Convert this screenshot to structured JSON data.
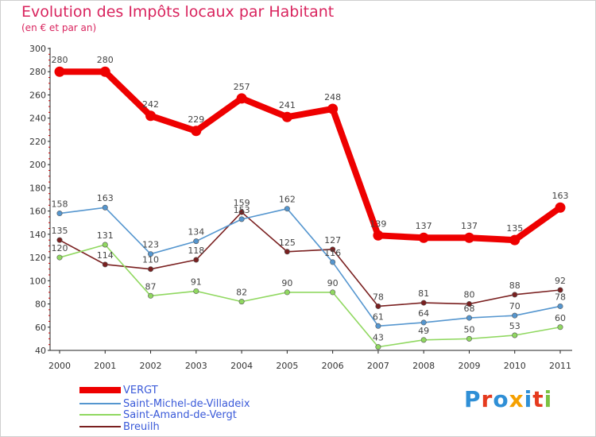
{
  "chart_data": {
    "type": "line",
    "title": "Evolution des Impôts locaux par Habitant",
    "subtitle": "(en € et par an)",
    "xlabel": "",
    "ylabel": "",
    "ylim": [
      40,
      300
    ],
    "yticks": [
      40,
      60,
      80,
      100,
      120,
      140,
      160,
      180,
      200,
      220,
      240,
      260,
      280,
      300
    ],
    "categories": [
      "2000",
      "2001",
      "2002",
      "2003",
      "2004",
      "2005",
      "2006",
      "2007",
      "2008",
      "2009",
      "2010",
      "2011"
    ],
    "series": [
      {
        "name": "VERGT",
        "color": "#ee0000",
        "values": [
          280,
          280,
          242,
          229,
          257,
          241,
          248,
          139,
          137,
          137,
          135,
          163
        ]
      },
      {
        "name": "Saint-Michel-de-Villadeix",
        "color": "#5596cf",
        "values": [
          158,
          163,
          123,
          134,
          153,
          162,
          116,
          61,
          64,
          68,
          70,
          78
        ]
      },
      {
        "name": "Saint-Amand-de-Vergt",
        "color": "#90d860",
        "values": [
          120,
          131,
          87,
          91,
          82,
          90,
          90,
          43,
          49,
          50,
          53,
          60
        ]
      },
      {
        "name": "Breuilh",
        "color": "#7a2020",
        "values": [
          135,
          114,
          110,
          118,
          159,
          125,
          127,
          78,
          81,
          80,
          88,
          92
        ]
      }
    ]
  },
  "brand": {
    "letters": [
      "P",
      "r",
      "o",
      "x",
      "i",
      "t",
      "i"
    ],
    "colors": [
      "#2f8fd6",
      "#e53a1e",
      "#2f8fd6",
      "#f5a000",
      "#2f8fd6",
      "#e53a1e",
      "#7cc242"
    ]
  }
}
